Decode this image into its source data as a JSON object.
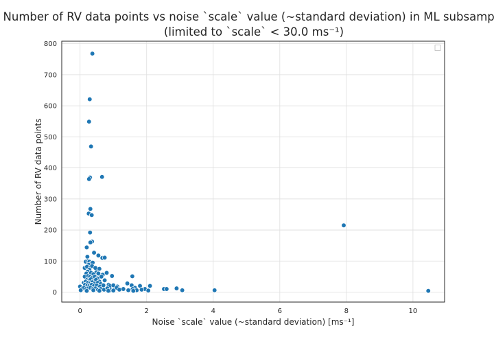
{
  "chart_data": {
    "type": "scatter",
    "title_line1": "Number of RV data points vs noise `scale` value (~standard deviation) in ML subsample",
    "title_line2": "(limited to `scale` < 30.0 ms⁻¹)",
    "xlabel": "Noise `scale` value (~standard deviation) [ms⁻¹]",
    "ylabel": "Number of RV data points",
    "xlim": [
      -0.55,
      10.95
    ],
    "ylim": [
      -32,
      808
    ],
    "xticks": [
      0,
      2,
      4,
      6,
      8,
      10
    ],
    "yticks": [
      0,
      100,
      200,
      300,
      400,
      500,
      600,
      700,
      800
    ],
    "grid": true,
    "legend_placement": "top-right",
    "legend_entries": [],
    "color": "#1f77b4",
    "points": [
      [
        0.37,
        768
      ],
      [
        0.29,
        621
      ],
      [
        0.27,
        549
      ],
      [
        0.33,
        469
      ],
      [
        0.66,
        371
      ],
      [
        0.3,
        369
      ],
      [
        0.27,
        364
      ],
      [
        0.31,
        268
      ],
      [
        0.26,
        253
      ],
      [
        0.35,
        248
      ],
      [
        7.92,
        215
      ],
      [
        0.3,
        192
      ],
      [
        0.36,
        163
      ],
      [
        0.31,
        160
      ],
      [
        0.2,
        144
      ],
      [
        0.42,
        127
      ],
      [
        0.55,
        118
      ],
      [
        0.22,
        114
      ],
      [
        0.67,
        110
      ],
      [
        0.74,
        111
      ],
      [
        0.17,
        98
      ],
      [
        0.24,
        100
      ],
      [
        0.28,
        98
      ],
      [
        0.33,
        92
      ],
      [
        0.38,
        95
      ],
      [
        0.26,
        88
      ],
      [
        0.14,
        78
      ],
      [
        0.21,
        82
      ],
      [
        0.31,
        80
      ],
      [
        0.36,
        84
      ],
      [
        0.46,
        78
      ],
      [
        0.58,
        75
      ],
      [
        0.28,
        72
      ],
      [
        0.23,
        66
      ],
      [
        0.49,
        64
      ],
      [
        0.19,
        60
      ],
      [
        0.33,
        62
      ],
      [
        0.4,
        58
      ],
      [
        0.55,
        60
      ],
      [
        0.68,
        56
      ],
      [
        0.8,
        62
      ],
      [
        0.14,
        50
      ],
      [
        0.24,
        52
      ],
      [
        0.3,
        50
      ],
      [
        0.36,
        46
      ],
      [
        0.44,
        50
      ],
      [
        0.52,
        44
      ],
      [
        0.64,
        50
      ],
      [
        0.21,
        40
      ],
      [
        0.27,
        38
      ],
      [
        0.33,
        42
      ],
      [
        0.4,
        36
      ],
      [
        0.48,
        40
      ],
      [
        0.58,
        34
      ],
      [
        0.74,
        38
      ],
      [
        0.96,
        52
      ],
      [
        1.57,
        51
      ],
      [
        0.11,
        30
      ],
      [
        0.17,
        34
      ],
      [
        0.23,
        30
      ],
      [
        0.3,
        28
      ],
      [
        0.37,
        32
      ],
      [
        0.45,
        28
      ],
      [
        0.53,
        30
      ],
      [
        0.62,
        26
      ],
      [
        0.86,
        24
      ],
      [
        0.15,
        24
      ],
      [
        0.22,
        22
      ],
      [
        0.28,
        20
      ],
      [
        0.35,
        24
      ],
      [
        0.42,
        20
      ],
      [
        0.5,
        22
      ],
      [
        0.6,
        18
      ],
      [
        0.7,
        22
      ],
      [
        0.9,
        20
      ],
      [
        1.0,
        22
      ],
      [
        1.12,
        18
      ],
      [
        1.42,
        28
      ],
      [
        1.55,
        22
      ],
      [
        1.8,
        20
      ],
      [
        2.1,
        20
      ],
      [
        2.9,
        12
      ],
      [
        1.65,
        14
      ],
      [
        1.95,
        10
      ],
      [
        0.0,
        18
      ],
      [
        0.06,
        10
      ],
      [
        0.12,
        14
      ],
      [
        0.18,
        10
      ],
      [
        0.25,
        12
      ],
      [
        0.31,
        14
      ],
      [
        0.38,
        10
      ],
      [
        0.46,
        12
      ],
      [
        0.54,
        8
      ],
      [
        0.62,
        10
      ],
      [
        0.72,
        8
      ],
      [
        0.82,
        12
      ],
      [
        0.92,
        6
      ],
      [
        1.02,
        8
      ],
      [
        1.1,
        14
      ],
      [
        1.18,
        8
      ],
      [
        1.3,
        10
      ],
      [
        1.45,
        6
      ],
      [
        1.58,
        10
      ],
      [
        1.7,
        6
      ],
      [
        1.85,
        8
      ],
      [
        2.05,
        5
      ],
      [
        0.02,
        6
      ],
      [
        0.2,
        4
      ],
      [
        0.4,
        6
      ],
      [
        0.58,
        4
      ],
      [
        0.85,
        4
      ],
      [
        1.0,
        5
      ],
      [
        1.6,
        4
      ],
      [
        2.52,
        10
      ],
      [
        2.6,
        10
      ],
      [
        3.07,
        6
      ],
      [
        4.04,
        6
      ],
      [
        10.46,
        4
      ]
    ]
  }
}
